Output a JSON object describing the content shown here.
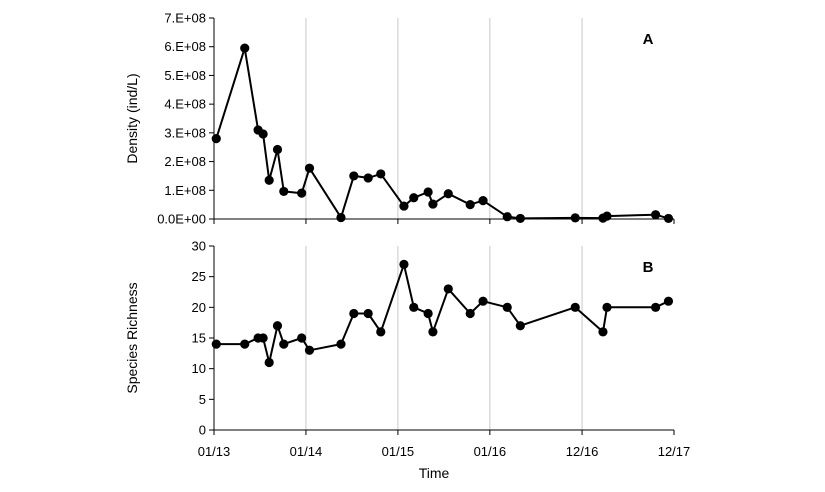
{
  "chart_data": [
    {
      "type": "line",
      "panel_label": "A",
      "ylabel": "Density (ind/L)",
      "xlabel": "",
      "ylim": [
        0,
        700000000
      ],
      "yticks": [
        0,
        100000000,
        200000000,
        300000000,
        400000000,
        500000000,
        600000000,
        700000000
      ],
      "ytick_labels": [
        "0.0E+00",
        "1.E+08",
        "2.E+08",
        "3.E+08",
        "4.E+08",
        "5.E+08",
        "6.E+08",
        "7.E+08"
      ],
      "marker": "circle",
      "color": "#000000",
      "points": [
        {
          "x": "2013-01-10",
          "y": 280000000
        },
        {
          "x": "2013-05-03",
          "y": 595000000
        },
        {
          "x": "2013-06-25",
          "y": 310000000
        },
        {
          "x": "2013-07-15",
          "y": 296000000
        },
        {
          "x": "2013-08-08",
          "y": 135000000
        },
        {
          "x": "2013-09-10",
          "y": 242000000
        },
        {
          "x": "2013-10-05",
          "y": 96000000
        },
        {
          "x": "2013-12-15",
          "y": 90000000
        },
        {
          "x": "2014-01-15",
          "y": 177000000
        },
        {
          "x": "2014-05-20",
          "y": 5000000
        },
        {
          "x": "2014-07-10",
          "y": 150000000
        },
        {
          "x": "2014-09-05",
          "y": 143000000
        },
        {
          "x": "2014-10-25",
          "y": 157000000
        },
        {
          "x": "2015-01-25",
          "y": 45000000
        },
        {
          "x": "2015-03-05",
          "y": 74000000
        },
        {
          "x": "2015-05-01",
          "y": 94000000
        },
        {
          "x": "2015-05-20",
          "y": 52000000
        },
        {
          "x": "2015-07-20",
          "y": 88000000
        },
        {
          "x": "2015-10-15",
          "y": 50000000
        },
        {
          "x": "2015-12-05",
          "y": 64000000
        },
        {
          "x": "2016-03-10",
          "y": 8000000
        },
        {
          "x": "2016-05-01",
          "y": 2000000
        },
        {
          "x": "2016-12-05",
          "y": 4000000
        },
        {
          "x": "2017-03-25",
          "y": 3000000
        },
        {
          "x": "2017-04-10",
          "y": 10000000
        },
        {
          "x": "2017-10-20",
          "y": 15000000
        },
        {
          "x": "2017-12-10",
          "y": 2000000
        }
      ]
    },
    {
      "type": "line",
      "panel_label": "B",
      "ylabel": "Species Richness",
      "xlabel": "Time",
      "ylim": [
        0,
        30
      ],
      "yticks": [
        0,
        5,
        10,
        15,
        20,
        25,
        30
      ],
      "ytick_labels": [
        "0",
        "5",
        "10",
        "15",
        "20",
        "25",
        "30"
      ],
      "marker": "circle",
      "color": "#000000",
      "points": [
        {
          "x": "2013-01-10",
          "y": 14
        },
        {
          "x": "2013-05-03",
          "y": 14
        },
        {
          "x": "2013-06-25",
          "y": 15
        },
        {
          "x": "2013-07-15",
          "y": 15
        },
        {
          "x": "2013-08-08",
          "y": 11
        },
        {
          "x": "2013-09-10",
          "y": 17
        },
        {
          "x": "2013-10-05",
          "y": 14
        },
        {
          "x": "2013-12-15",
          "y": 15
        },
        {
          "x": "2014-01-15",
          "y": 13
        },
        {
          "x": "2014-05-20",
          "y": 14
        },
        {
          "x": "2014-07-10",
          "y": 19
        },
        {
          "x": "2014-09-05",
          "y": 19
        },
        {
          "x": "2014-10-25",
          "y": 16
        },
        {
          "x": "2015-01-25",
          "y": 27
        },
        {
          "x": "2015-03-05",
          "y": 20
        },
        {
          "x": "2015-05-01",
          "y": 19
        },
        {
          "x": "2015-05-20",
          "y": 16
        },
        {
          "x": "2015-07-20",
          "y": 23
        },
        {
          "x": "2015-10-15",
          "y": 19
        },
        {
          "x": "2015-12-05",
          "y": 21
        },
        {
          "x": "2016-03-10",
          "y": 20
        },
        {
          "x": "2016-05-01",
          "y": 17
        },
        {
          "x": "2016-12-05",
          "y": 20
        },
        {
          "x": "2017-03-25",
          "y": 16
        },
        {
          "x": "2017-04-10",
          "y": 20
        },
        {
          "x": "2017-10-20",
          "y": 20
        },
        {
          "x": "2017-12-10",
          "y": 21
        }
      ]
    }
  ],
  "x_axis": {
    "label": "Time",
    "range": [
      "2013-01-01",
      "2018-01-01"
    ],
    "ticks": [
      "2013-01-01",
      "2014-01-01",
      "2015-01-01",
      "2016-01-01",
      "2017-01-01",
      "2018-01-01"
    ],
    "tick_labels": [
      "01/13",
      "01/14",
      "01/15",
      "01/16",
      "12/16",
      "12/17"
    ],
    "vertical_gridlines": true,
    "horizontal_gridlines": false
  }
}
